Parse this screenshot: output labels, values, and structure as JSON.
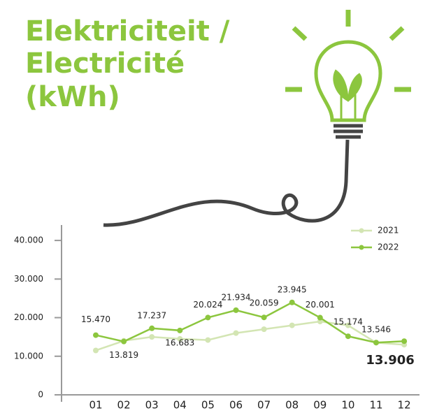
{
  "chart_data": {
    "type": "line",
    "title_lines": [
      "Elektriciteit /",
      "Electricité",
      "(kWh)"
    ],
    "categories": [
      "01",
      "02",
      "03",
      "04",
      "05",
      "06",
      "07",
      "08",
      "09",
      "10",
      "11",
      "12"
    ],
    "series": [
      {
        "name": "2021",
        "color": "#d3e5b3",
        "values": [
          11500,
          14000,
          15000,
          14500,
          14200,
          16000,
          17000,
          18000,
          19000,
          18000,
          13500,
          13000
        ]
      },
      {
        "name": "2022",
        "color": "#8cc63e",
        "values": [
          15470,
          13819,
          17237,
          16683,
          20024,
          21934,
          20059,
          23945,
          20001,
          15174,
          13546,
          13906
        ],
        "value_labels": [
          "15.470",
          "13.819",
          "17.237",
          "16.683",
          "20.024",
          "21.934",
          "20.059",
          "23.945",
          "20.001",
          "15.174",
          "13.546",
          "13.906"
        ]
      }
    ],
    "ylim": [
      0,
      44000
    ],
    "yticks": [
      0,
      {
        "value": 10000,
        "label": "10.000"
      },
      {
        "value": 20000,
        "label": "20.000"
      },
      {
        "value": 30000,
        "label": "30.000"
      },
      {
        "value": 40000,
        "label": "40.000"
      }
    ],
    "legend": "top-right"
  }
}
